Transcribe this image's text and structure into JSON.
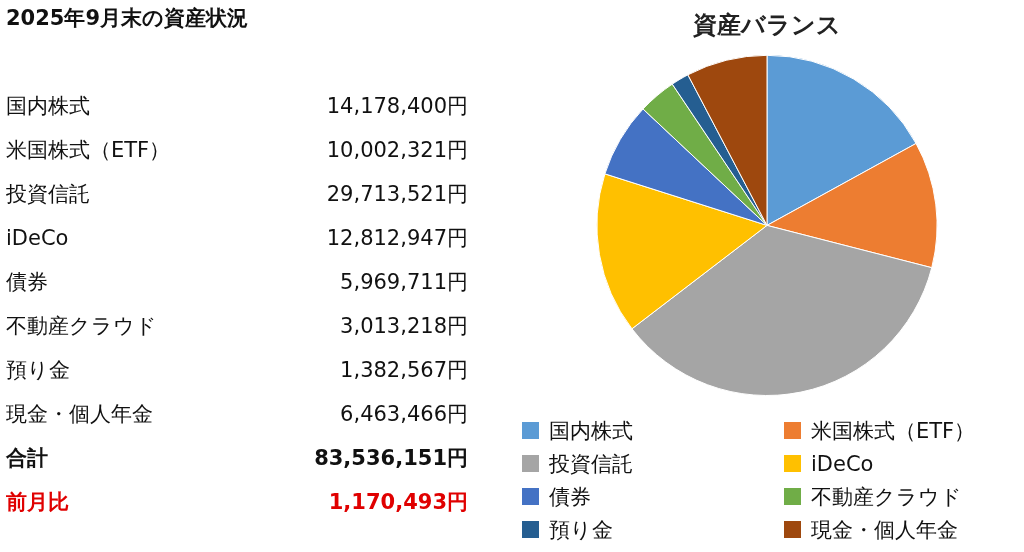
{
  "chart_data": [
    {
      "type": "other",
      "title": "2025年9月末の資産状況",
      "annotations": [
        "国内株式",
        "14,178,400円",
        "米国株式（ETF）",
        "10,002,321円",
        "投資信託",
        "29,713,521円",
        "iDeCo",
        "12,812,947円",
        "債券",
        "5,969,711円",
        "不動産クラウド",
        "3,013,218円",
        "預り金",
        "1,382,567円",
        "現金・個人年金",
        "6,463,466円",
        "合計",
        "83,536,151円",
        "前月比",
        "1,170,493円"
      ]
    },
    {
      "type": "pie",
      "title": "資産バランス",
      "categories": [
        "国内株式",
        "米国株式（ETF）",
        "投資信託",
        "iDeCo",
        "債券",
        "不動産クラウド",
        "預り金",
        "現金・個人年金"
      ],
      "values": [
        17.0,
        12.0,
        35.6,
        15.3,
        7.1,
        3.6,
        1.7,
        7.7
      ],
      "colors": [
        "#5b9bd5",
        "#ed7d31",
        "#a5a5a5",
        "#ffc000",
        "#4472c4",
        "#70ad47",
        "#255e91",
        "#9e480e"
      ],
      "legend": "bottom"
    }
  ]
}
